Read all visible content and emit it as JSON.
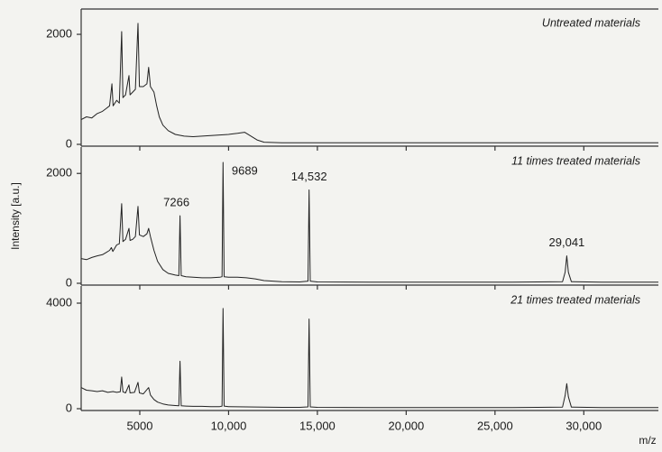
{
  "chart_data": [
    {
      "type": "line",
      "title": "Untreated materials",
      "color": "#222222",
      "xlim": [
        1700,
        34200
      ],
      "ylim": [
        0,
        2460
      ],
      "yticks": [
        0,
        2000
      ],
      "x": [
        1700,
        2000,
        2300,
        2600,
        2900,
        3100,
        3300,
        3430,
        3500,
        3700,
        3850,
        3980,
        4050,
        4200,
        4390,
        4450,
        4600,
        4750,
        4900,
        4980,
        5200,
        5400,
        5500,
        5600,
        5800,
        5950,
        6100,
        6300,
        6600,
        7000,
        7500,
        8000,
        8500,
        9000,
        9500,
        10000,
        10500,
        10900,
        11200,
        11600,
        12000,
        13000,
        16000,
        20000,
        25000,
        30000,
        34200
      ],
      "values": [
        450,
        500,
        480,
        560,
        600,
        650,
        700,
        1100,
        700,
        800,
        750,
        2050,
        850,
        900,
        1250,
        900,
        950,
        1000,
        2200,
        1050,
        1050,
        1100,
        1400,
        1050,
        950,
        700,
        500,
        350,
        250,
        180,
        150,
        140,
        150,
        160,
        170,
        180,
        200,
        220,
        160,
        80,
        40,
        30,
        30,
        30,
        30,
        30,
        30
      ]
    },
    {
      "type": "line",
      "title": "11 times treated materials",
      "y_label": "Intensity [a.u.]",
      "color": "#222222",
      "xlim": [
        1700,
        34200
      ],
      "ylim": [
        0,
        2480
      ],
      "yticks": [
        0,
        2000
      ],
      "x": [
        1700,
        2000,
        2300,
        2600,
        2900,
        3100,
        3300,
        3400,
        3480,
        3700,
        3850,
        3980,
        4050,
        4200,
        4390,
        4450,
        4600,
        4750,
        4900,
        4980,
        5200,
        5400,
        5500,
        5600,
        5800,
        6000,
        6300,
        6600,
        7000,
        7200,
        7266,
        7330,
        7600,
        8000,
        8500,
        9000,
        9500,
        9630,
        9689,
        9750,
        10000,
        10500,
        11000,
        11500,
        12000,
        13000,
        14000,
        14470,
        14532,
        14600,
        15000,
        18000,
        22000,
        26000,
        28800,
        28950,
        29041,
        29130,
        29300,
        31000,
        34200
      ],
      "values": [
        450,
        430,
        470,
        500,
        520,
        560,
        600,
        650,
        580,
        700,
        720,
        1450,
        760,
        800,
        1000,
        780,
        800,
        850,
        1400,
        880,
        850,
        900,
        1000,
        850,
        600,
        400,
        250,
        180,
        150,
        140,
        1230,
        140,
        120,
        110,
        100,
        100,
        110,
        120,
        2200,
        120,
        110,
        110,
        100,
        80,
        50,
        30,
        25,
        40,
        1700,
        40,
        25,
        20,
        20,
        20,
        30,
        200,
        500,
        200,
        30,
        20,
        20
      ],
      "annotations": [
        {
          "text": "7266",
          "x": 7266
        },
        {
          "text": "9689",
          "x": 9689
        },
        {
          "text": "14,532",
          "x": 14532
        },
        {
          "text": "29,041",
          "x": 29041
        }
      ]
    },
    {
      "type": "line",
      "title": "21 times treated materials",
      "x_label": "m/z",
      "color": "#222222",
      "xlim": [
        1700,
        34200
      ],
      "ylim": [
        0,
        4650
      ],
      "yticks": [
        0,
        4000
      ],
      "xticks": [
        5000,
        {
          "value": 10000,
          "label": "10,000"
        },
        {
          "value": 15000,
          "label": "15,000"
        },
        {
          "value": 20000,
          "label": "20,000"
        },
        {
          "value": 25000,
          "label": "25,000"
        },
        {
          "value": 30000,
          "label": "30,000"
        }
      ],
      "x": [
        1700,
        2000,
        2300,
        2600,
        2900,
        3200,
        3500,
        3700,
        3900,
        3980,
        4050,
        4200,
        4390,
        4450,
        4700,
        4900,
        4980,
        5200,
        5500,
        5600,
        5800,
        6000,
        6300,
        6600,
        7000,
        7200,
        7266,
        7330,
        7600,
        8000,
        8500,
        9000,
        9500,
        9630,
        9689,
        9750,
        10000,
        11000,
        12000,
        13000,
        14000,
        14470,
        14532,
        14600,
        15000,
        18000,
        22000,
        26000,
        28800,
        28950,
        29041,
        29130,
        29300,
        31000,
        34200
      ],
      "values": [
        800,
        700,
        680,
        650,
        680,
        620,
        650,
        620,
        640,
        1200,
        640,
        600,
        900,
        600,
        620,
        1000,
        600,
        560,
        800,
        520,
        350,
        250,
        180,
        140,
        120,
        110,
        1800,
        110,
        100,
        90,
        90,
        80,
        80,
        100,
        3800,
        100,
        80,
        70,
        60,
        50,
        50,
        70,
        3400,
        70,
        50,
        40,
        40,
        40,
        60,
        500,
        950,
        450,
        60,
        40,
        40
      ]
    }
  ]
}
